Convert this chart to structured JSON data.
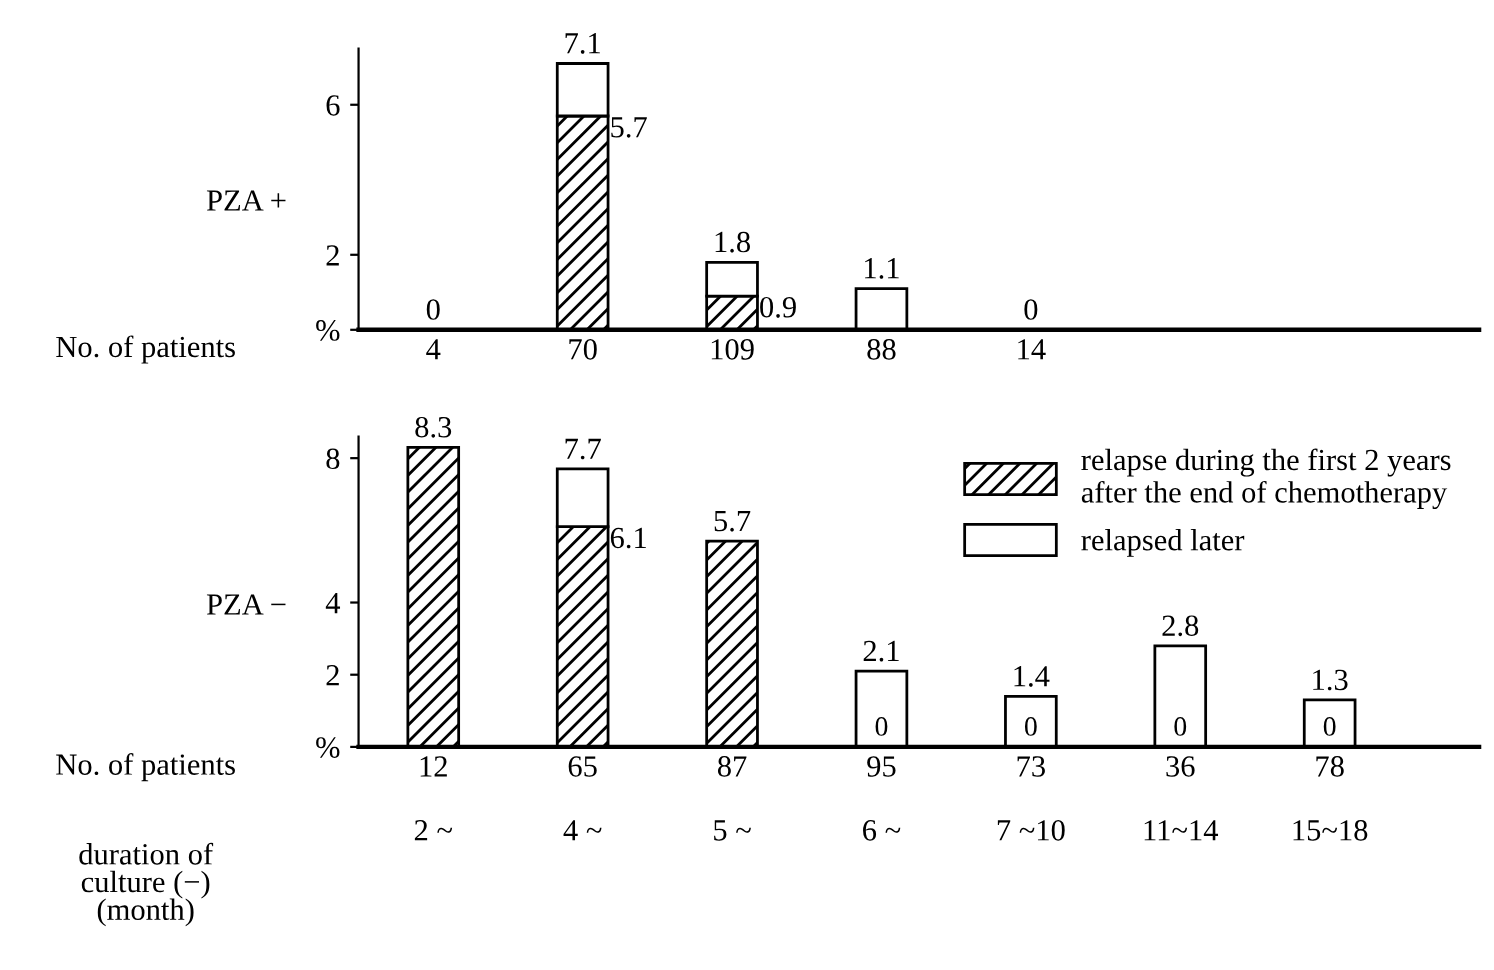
{
  "chart_data": [
    {
      "type": "bar",
      "stacked": true,
      "ylabel": "PZA +",
      "xlabel": "No. of patients",
      "categories": [
        "4",
        "70",
        "109",
        "88",
        "14",
        null,
        null
      ],
      "series": [
        {
          "color": "#000000",
          "values": [
            0,
            5.7,
            0.9,
            0,
            0,
            null,
            null
          ],
          "value_labels": [
            null,
            "5.7",
            "0.9",
            null,
            null,
            null,
            null
          ]
        },
        {
          "color": "#ffffff",
          "values": [
            0,
            1.4,
            0.9,
            1.1,
            0,
            null,
            null
          ]
        }
      ],
      "totals": [
        "0",
        "7.1",
        "1.8",
        "1.1",
        "0",
        null,
        null
      ],
      "ylim": [
        0,
        7.5
      ],
      "yticks": [
        {
          "value": 0,
          "label": "%"
        },
        2,
        6
      ],
      "grid": false,
      "legend": false
    },
    {
      "type": "bar",
      "stacked": true,
      "ylabel": "PZA −",
      "xlabel": "No. of patients",
      "categories": [
        "12\n\n2 ~",
        "65\n\n4 ~",
        "87\n\n5 ~",
        "95\n\n6 ~",
        "73\n\n7 ~10",
        "36\n\n11~14",
        "78\n\n15~18"
      ],
      "series": [
        {
          "name": "relapse during the first 2 years\nafter the end of chemotherapy",
          "color": "#000000",
          "values": [
            8.3,
            6.1,
            5.7,
            0,
            0,
            0,
            0
          ],
          "value_labels": [
            null,
            "6.1",
            null,
            "0",
            "0",
            "0",
            "0"
          ]
        },
        {
          "name": "relapsed later",
          "color": "#ffffff",
          "values": [
            0,
            1.6,
            0,
            2.1,
            1.4,
            2.8,
            1.3
          ]
        }
      ],
      "totals": [
        "8.3",
        "7.7",
        "5.7",
        "2.1",
        "1.4",
        "2.8",
        "1.3"
      ],
      "ylim": [
        0,
        8.6
      ],
      "yticks": [
        {
          "value": 0,
          "label": "%"
        },
        2,
        4,
        8
      ],
      "grid": false,
      "legend": "top right",
      "annotations": [
        "duration of\nculture (−)\n(month)"
      ]
    }
  ]
}
